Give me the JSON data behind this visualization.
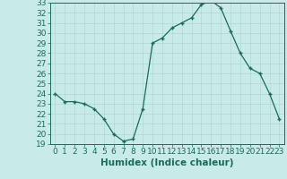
{
  "x": [
    0,
    1,
    2,
    3,
    4,
    5,
    6,
    7,
    8,
    9,
    10,
    11,
    12,
    13,
    14,
    15,
    16,
    17,
    18,
    19,
    20,
    21,
    22,
    23
  ],
  "y": [
    24.0,
    23.2,
    23.2,
    23.0,
    22.5,
    21.5,
    20.0,
    19.3,
    19.5,
    22.5,
    29.0,
    29.5,
    30.5,
    31.0,
    31.5,
    32.8,
    33.2,
    32.5,
    30.2,
    28.0,
    26.5,
    26.0,
    24.0,
    21.5
  ],
  "line_color": "#1a6b5a",
  "marker_color": "#1a6b5a",
  "bg_color": "#c8eae8",
  "grid_color": "#b0d8d4",
  "axis_color": "#1a6b5a",
  "xlabel": "Humidex (Indice chaleur)",
  "ylim": [
    19,
    33
  ],
  "xlim": [
    -0.5,
    23.5
  ],
  "yticks": [
    19,
    20,
    21,
    22,
    23,
    24,
    25,
    26,
    27,
    28,
    29,
    30,
    31,
    32,
    33
  ],
  "xticks": [
    0,
    1,
    2,
    3,
    4,
    5,
    6,
    7,
    8,
    9,
    10,
    11,
    12,
    13,
    14,
    15,
    16,
    17,
    18,
    19,
    20,
    21,
    22,
    23
  ],
  "tick_fontsize": 6.5,
  "xlabel_fontsize": 7.5
}
